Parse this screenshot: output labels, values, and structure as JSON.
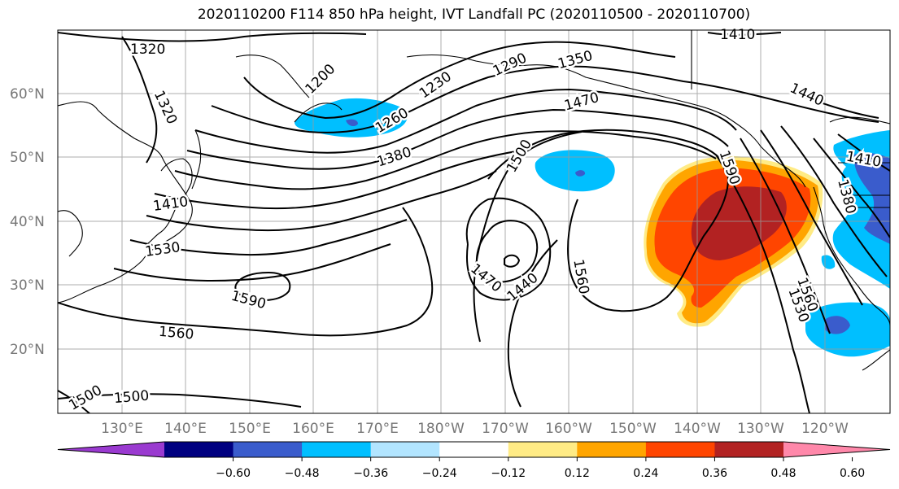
{
  "title": "2020110200 F114 850 hPa height, IVT Landfall PC (2020110500 - 2020110700)",
  "lat_labels": [
    "60°N",
    "50°N",
    "40°N",
    "30°N",
    "20°N"
  ],
  "lon_labels": [
    "130°E",
    "140°E",
    "150°E",
    "160°E",
    "170°E",
    "180°W",
    "170°W",
    "160°W",
    "150°W",
    "140°W",
    "130°W",
    "120°W"
  ],
  "contour_labels": [
    "1320",
    "1320",
    "1200",
    "1230",
    "1260",
    "1290",
    "1350",
    "1380",
    "1410",
    "1470",
    "1440",
    "1500",
    "1530",
    "1560",
    "1590",
    "1590",
    "1560",
    "1500",
    "1470",
    "1440",
    "1560",
    "1530",
    "1380",
    "1410",
    "1410",
    "1500"
  ],
  "colorbar": {
    "ticks": [
      "−0.60",
      "−0.48",
      "−0.36",
      "−0.24",
      "−0.12",
      "0.12",
      "0.24",
      "0.36",
      "0.48",
      "0.60"
    ],
    "colors": [
      "#9a3ad0",
      "#000080",
      "#3a5ccc",
      "#00bfff",
      "#b2e5ff",
      "#ffffff",
      "#ffeb85",
      "#ffa500",
      "#ff4500",
      "#b22222",
      "#ff88aa"
    ]
  },
  "colors": {
    "blue": "#00bfff",
    "dark_blue": "#3a5ccc",
    "orange": "#ffa500",
    "red_orange": "#ff4500",
    "dark_red": "#b22222"
  }
}
